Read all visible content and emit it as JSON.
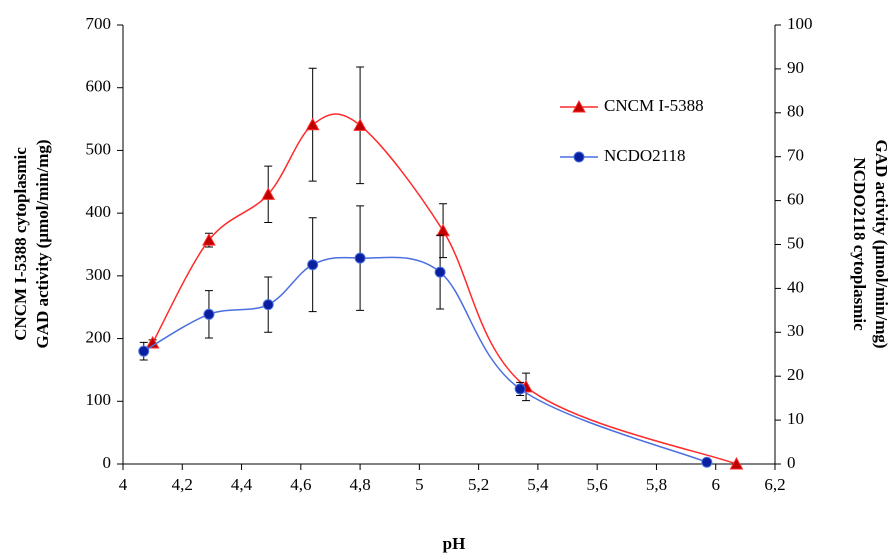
{
  "chart_data": {
    "type": "line",
    "xlabel": "pH",
    "ylabel": [
      "CNCM I-5388 cytoplasmic",
      "GAD activity (µmol/min/mg)"
    ],
    "y2label": [
      "NCDO2118 cytoplasmic",
      "GAD activity (µmol/min/mg)"
    ],
    "xlim": [
      4,
      6.2
    ],
    "xticks": [
      4,
      {
        "value": 4.2,
        "label": "4,2"
      },
      {
        "value": 4.4,
        "label": "4,4"
      },
      {
        "value": 4.6,
        "label": "4,6"
      },
      {
        "value": 4.8,
        "label": "4,8"
      },
      5,
      {
        "value": 5.2,
        "label": "5,2"
      },
      {
        "value": 5.4,
        "label": "5,4"
      },
      {
        "value": 5.6,
        "label": "5,6"
      },
      {
        "value": 5.8,
        "label": "5,8"
      },
      6,
      {
        "value": 6.2,
        "label": "6,2"
      }
    ],
    "ylim": [
      0,
      700
    ],
    "yticks": [
      0,
      100,
      200,
      300,
      400,
      500,
      600,
      700
    ],
    "y2lim": [
      0,
      100
    ],
    "y2ticks": [
      0,
      10,
      20,
      30,
      40,
      50,
      60,
      70,
      80,
      90,
      100
    ],
    "legend": "upper right",
    "series": [
      {
        "name": "CNCM I-5388",
        "color": "#ff2a2a",
        "marker_color": "#c00000",
        "marker": "triangle",
        "x": [
          4.1,
          4.29,
          4.49,
          4.64,
          4.8,
          5.08,
          5.36,
          6.07
        ],
        "values": [
          193,
          357,
          430,
          541,
          540,
          372,
          123,
          0
        ],
        "errors": [
          5,
          11,
          45,
          90,
          93,
          43,
          22,
          0
        ]
      },
      {
        "name": "NCDO2118",
        "color": "#4a6fe0",
        "marker_color": "#0a1fa0",
        "marker": "circle",
        "axis": "y2",
        "x": [
          4.07,
          4.29,
          4.49,
          4.64,
          4.8,
          5.07,
          5.34,
          5.97
        ],
        "values": [
          25.7,
          34.1,
          36.3,
          45.4,
          46.9,
          43.7,
          17.1,
          0.4
        ],
        "errors": [
          2,
          5.4,
          6.3,
          10.7,
          11.9,
          8.4,
          1.5,
          0
        ]
      }
    ]
  }
}
